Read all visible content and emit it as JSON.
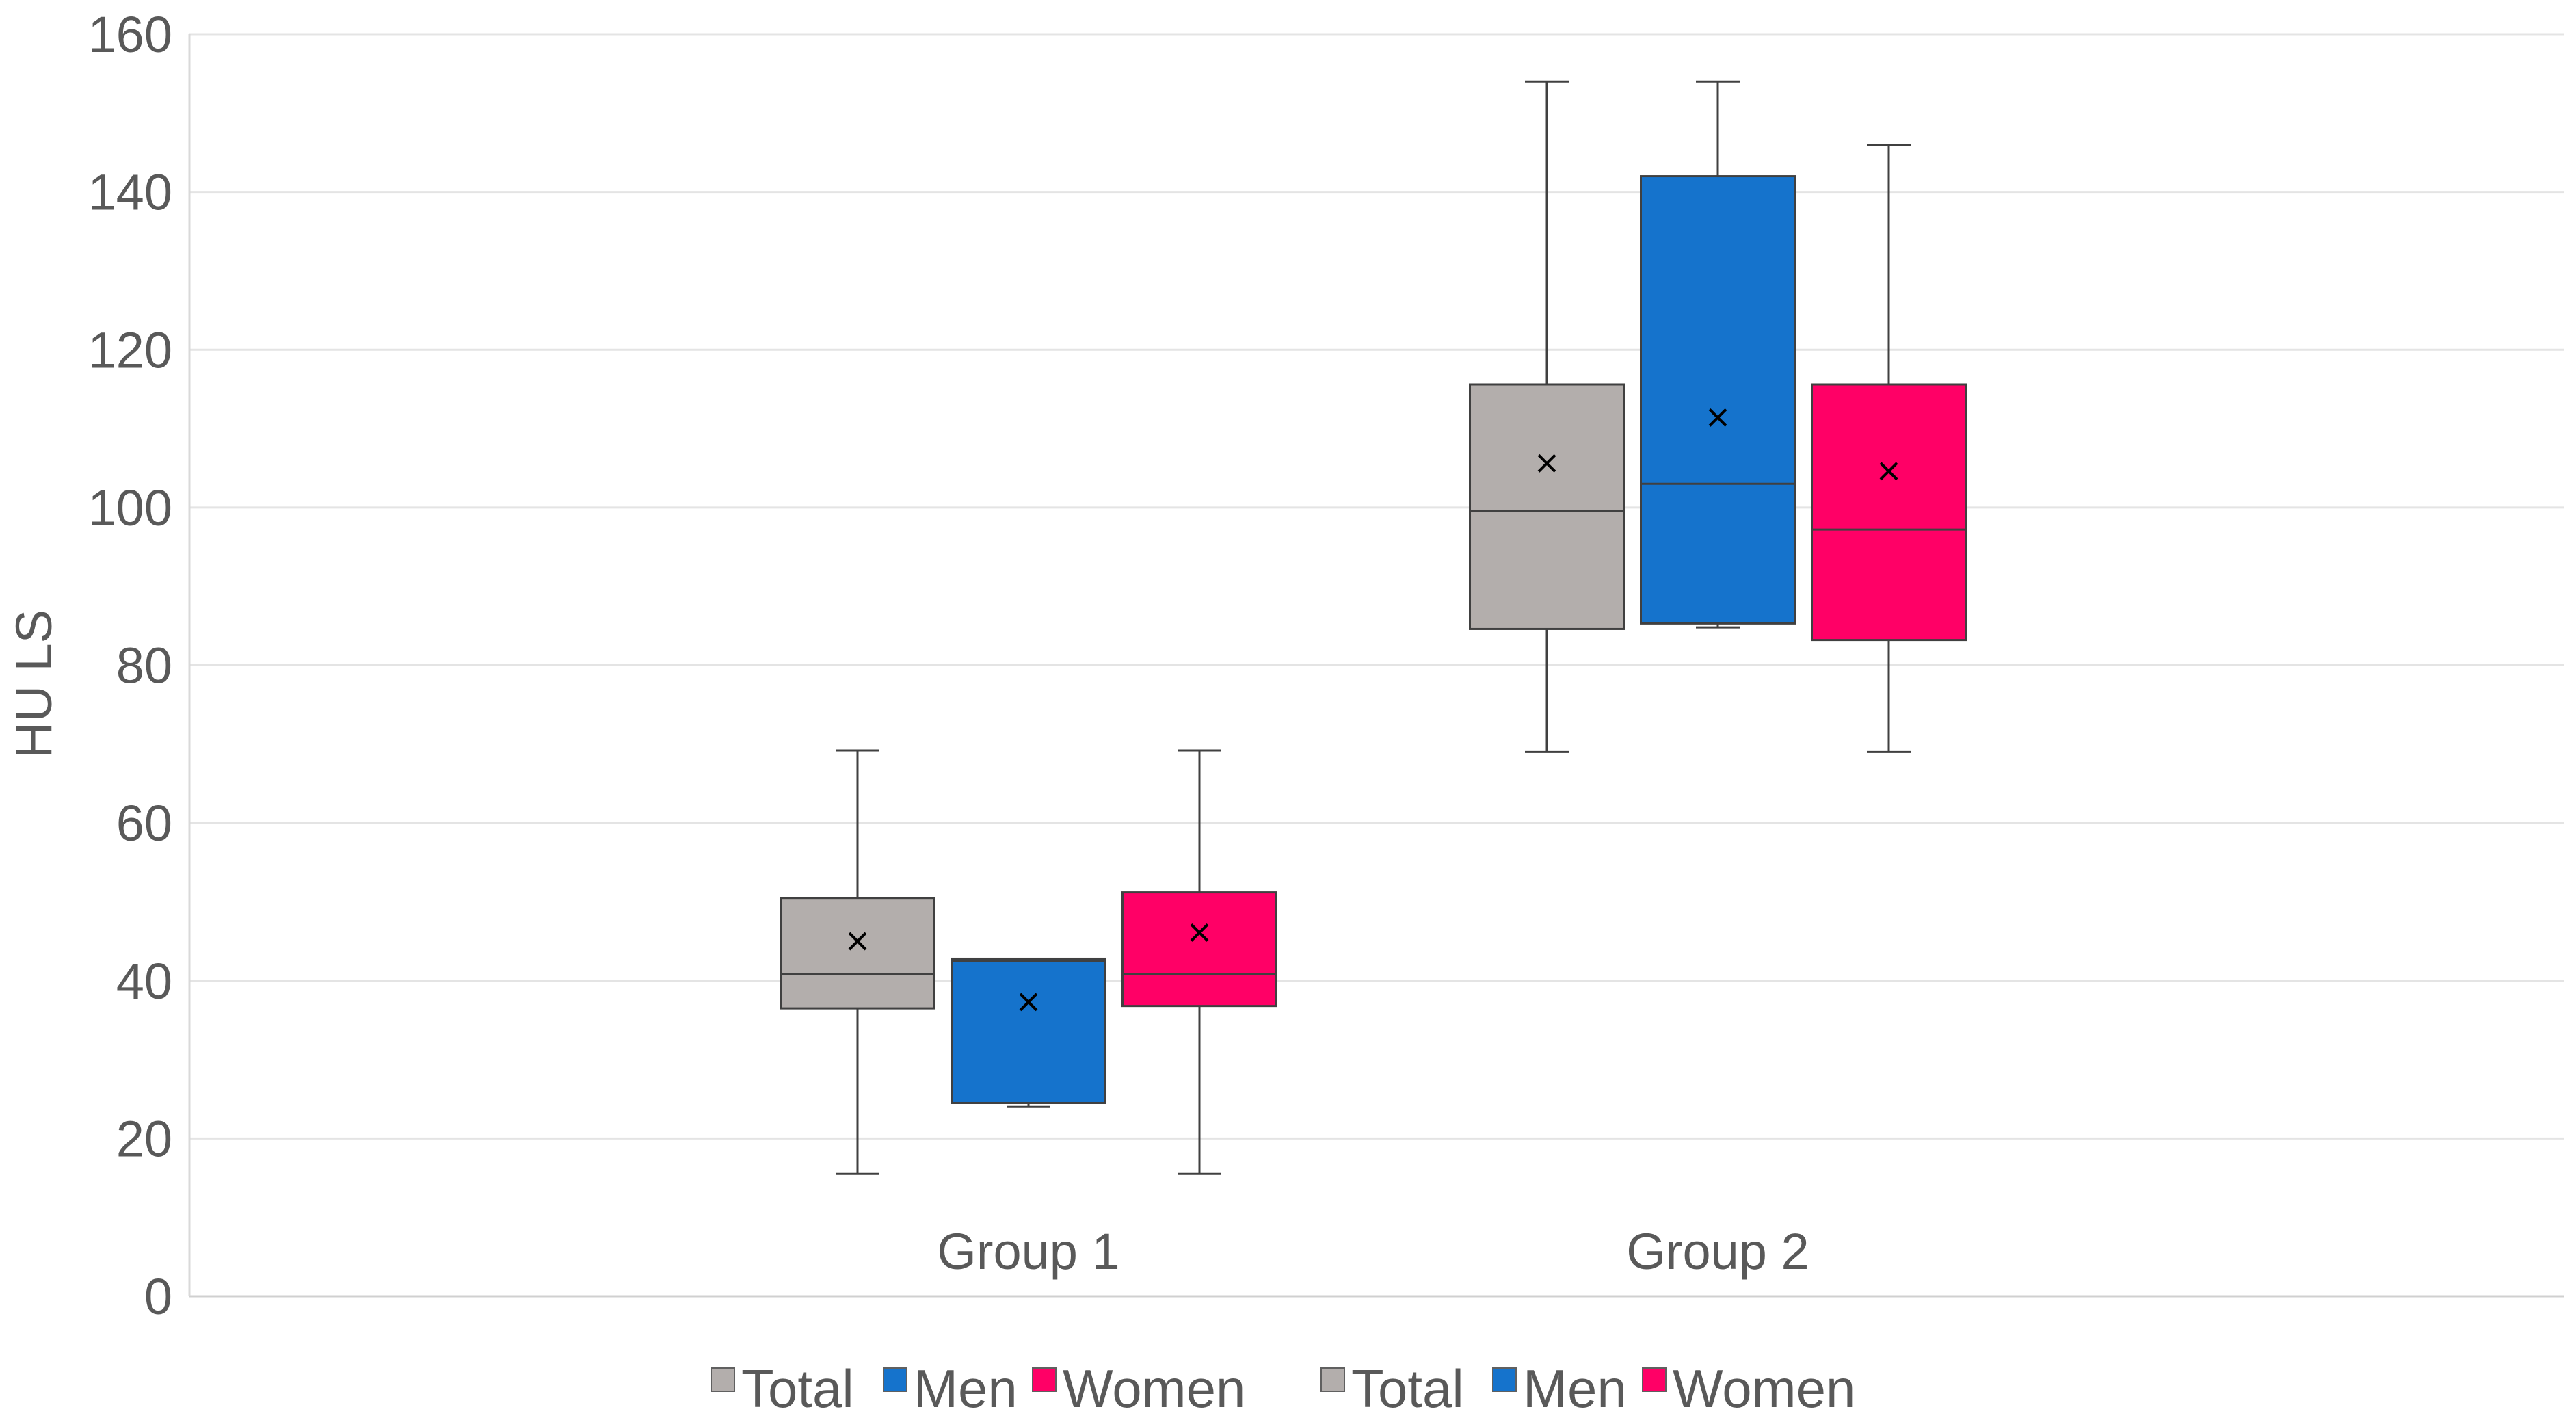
{
  "chart_data": {
    "type": "box",
    "ylabel": "HU LS",
    "xlabel": "",
    "ylim": [
      0,
      160
    ],
    "yticks": [
      0,
      20,
      40,
      60,
      80,
      100,
      120,
      140,
      160
    ],
    "grid": true,
    "legend_position": "bottom",
    "categories": [
      "Group 1",
      "Group 2"
    ],
    "series": [
      {
        "name": "Total",
        "color": "#b3aeac",
        "boxes": [
          {
            "min": 15.5,
            "q1": 36.5,
            "median": 40.8,
            "q3": 50.5,
            "max": 69.2,
            "mean": 45.0
          },
          {
            "min": 69.0,
            "q1": 84.6,
            "median": 99.6,
            "q3": 115.6,
            "max": 154.0,
            "mean": 105.6
          }
        ]
      },
      {
        "name": "Men",
        "color": "#1573cc",
        "boxes": [
          {
            "min": 24.0,
            "q1": 24.5,
            "median": 42.5,
            "q3": 42.8,
            "max": 42.8,
            "mean": 37.3
          },
          {
            "min": 84.8,
            "q1": 85.3,
            "median": 103.0,
            "q3": 142.0,
            "max": 154.0,
            "mean": 111.4
          }
        ]
      },
      {
        "name": "Women",
        "color": "#ff0066",
        "boxes": [
          {
            "min": 15.5,
            "q1": 36.8,
            "median": 40.8,
            "q3": 51.2,
            "max": 69.2,
            "mean": 46.1
          },
          {
            "min": 69.0,
            "q1": 83.2,
            "median": 97.2,
            "q3": 115.6,
            "max": 146.0,
            "mean": 104.6
          }
        ]
      }
    ],
    "legend": [
      "Total",
      "Men",
      "Women",
      "Total",
      "Men",
      "Women"
    ]
  }
}
